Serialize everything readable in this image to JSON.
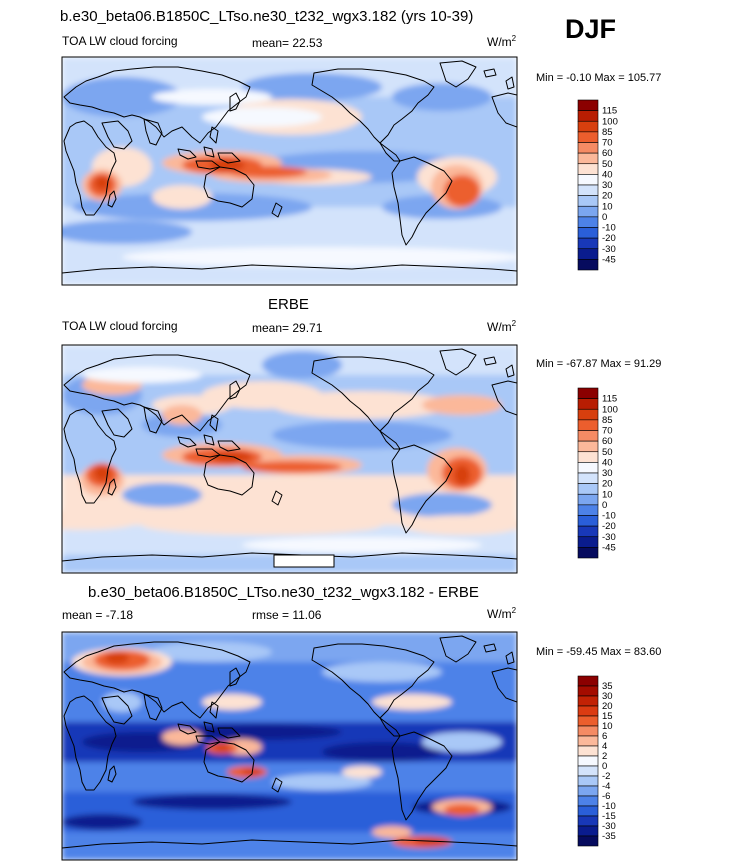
{
  "header": {
    "case_title": "b.e30_beta06.B1850C_LTso.ne30_t232_wgx3.182 (yrs 10-39)",
    "season": "DJF"
  },
  "panels": [
    {
      "variable": "TOA LW cloud forcing",
      "stat1": "mean=  22.53",
      "stat2": "",
      "units": "W/m",
      "units_exp": "2",
      "minmax": "Min =  -0.10 Max = 105.77"
    },
    {
      "title": "ERBE",
      "variable": "TOA LW cloud forcing",
      "stat1": "mean=  29.71",
      "stat2": "",
      "units": "W/m",
      "units_exp": "2",
      "minmax": "Min = -67.87 Max =  91.29"
    },
    {
      "title": "b.e30_beta06.B1850C_LTso.ne30_t232_wgx3.182 - ERBE",
      "variable": "",
      "stat1": "mean =  -7.18",
      "stat2": "rmse =  11.06",
      "units": "W/m",
      "units_exp": "2",
      "minmax": "Min = -59.45 Max =  83.60"
    }
  ],
  "colorbars": [
    {
      "levels": [
        "115",
        "100",
        "85",
        "70",
        "60",
        "50",
        "40",
        "30",
        "20",
        "10",
        "0",
        "-10",
        "-20",
        "-30",
        "-45"
      ],
      "colors": [
        "#8b0000",
        "#b81d02",
        "#d73f0e",
        "#ec5e2d",
        "#f58b64",
        "#fbb89a",
        "#fde2d3",
        "#f6f9ff",
        "#d3e3fb",
        "#a9c8f7",
        "#7ba6f0",
        "#4d82e8",
        "#2a5fd9",
        "#1838b8",
        "#0a1c8e",
        "#060b5e"
      ]
    },
    {
      "levels": [
        "115",
        "100",
        "85",
        "70",
        "60",
        "50",
        "40",
        "30",
        "20",
        "10",
        "0",
        "-10",
        "-20",
        "-30",
        "-45"
      ],
      "colors": [
        "#8b0000",
        "#b81d02",
        "#d73f0e",
        "#ec5e2d",
        "#f58b64",
        "#fbb89a",
        "#fde2d3",
        "#f6f9ff",
        "#d3e3fb",
        "#a9c8f7",
        "#7ba6f0",
        "#4d82e8",
        "#2a5fd9",
        "#1838b8",
        "#0a1c8e",
        "#060b5e"
      ]
    },
    {
      "levels": [
        "35",
        "30",
        "20",
        "15",
        "10",
        "6",
        "4",
        "2",
        "0",
        "-2",
        "-4",
        "-6",
        "-10",
        "-15",
        "-30",
        "-35"
      ],
      "colors": [
        "#8b0000",
        "#a40c00",
        "#c22205",
        "#db3b12",
        "#ec5e2d",
        "#f58b64",
        "#fbb89a",
        "#fde2d3",
        "#f6f9ff",
        "#d3e3fb",
        "#a9c8f7",
        "#7ba6f0",
        "#4d82e8",
        "#2a5fd9",
        "#1838b8",
        "#0a1c8e",
        "#060b5e"
      ]
    }
  ]
}
